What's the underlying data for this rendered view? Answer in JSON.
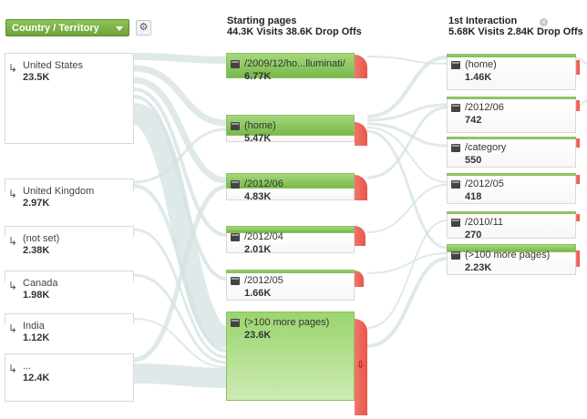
{
  "dimension_selector": {
    "label": "Country / Territory"
  },
  "icons": {
    "settings": "gear-icon",
    "entry": "entry-arrow-icon",
    "page": "page-icon",
    "close": "close-icon",
    "drop_off": "drop-off-arrow-icon"
  },
  "colors": {
    "bar_green": "#7cbb4e",
    "drop_red": "#e8564a",
    "flow_gray": "#d3e1e1"
  },
  "columns": {
    "starting": {
      "title": "Starting pages",
      "stats": "44.3K Visits 38.6K Drop Offs"
    },
    "interaction1": {
      "title": "1st Interaction",
      "stats": "5.68K Visits 2.84K Drop Offs"
    }
  },
  "countries": [
    {
      "name": "United States",
      "value": "23.5K"
    },
    {
      "name": "United Kingdom",
      "value": "2.97K"
    },
    {
      "name": "(not set)",
      "value": "2.38K"
    },
    {
      "name": "Canada",
      "value": "1.98K"
    },
    {
      "name": "India",
      "value": "1.12K"
    },
    {
      "name": "...",
      "value": "12.4K"
    }
  ],
  "starting_pages": [
    {
      "name": "/2009/12/ho...lluminati/",
      "value": "6.77K"
    },
    {
      "name": "(home)",
      "value": "5.47K"
    },
    {
      "name": "/2012/06",
      "value": "4.83K"
    },
    {
      "name": "/2012/04",
      "value": "2.01K"
    },
    {
      "name": "/2012/05",
      "value": "1.66K"
    },
    {
      "name": "(>100 more pages)",
      "value": "23.6K"
    }
  ],
  "interaction_pages": [
    {
      "name": "(home)",
      "value": "1.46K"
    },
    {
      "name": "/2012/06",
      "value": "742"
    },
    {
      "name": "/category",
      "value": "550"
    },
    {
      "name": "/2012/05",
      "value": "418"
    },
    {
      "name": "/2010/11",
      "value": "270"
    },
    {
      "name": "(>100 more pages)",
      "value": "2.23K"
    }
  ]
}
